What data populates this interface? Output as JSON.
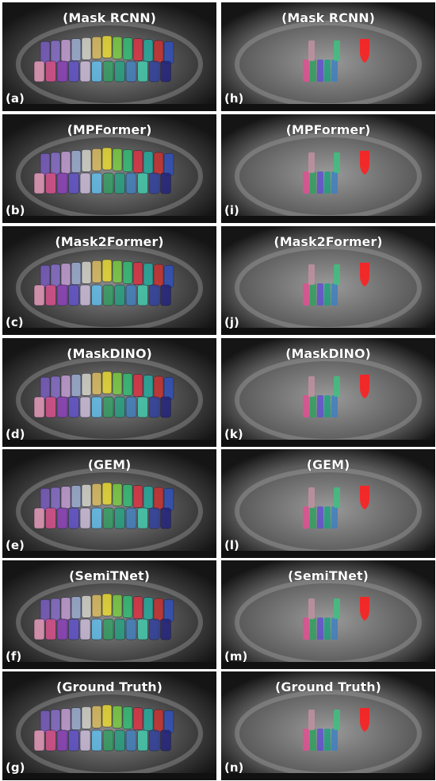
{
  "panels": {
    "left": [
      {
        "title": "(Mask RCNN)",
        "label": "(a)"
      },
      {
        "title": "(MPFormer)",
        "label": "(b)"
      },
      {
        "title": "(Mask2Former)",
        "label": "(c)"
      },
      {
        "title": "(MaskDINO)",
        "label": "(d)"
      },
      {
        "title": "(GEM)",
        "label": "(e)"
      },
      {
        "title": "(SemiTNet)",
        "label": "(f)"
      },
      {
        "title": "(Ground Truth)",
        "label": "(g)"
      }
    ],
    "right": [
      {
        "title": "(Mask RCNN)",
        "label": "(h)"
      },
      {
        "title": "(MPFormer)",
        "label": "(i)"
      },
      {
        "title": "(Mask2Former)",
        "label": "(j)"
      },
      {
        "title": "(MaskDINO)",
        "label": "(k)"
      },
      {
        "title": "(GEM)",
        "label": "(l)"
      },
      {
        "title": "(SemiTNet)",
        "label": "(m)"
      },
      {
        "title": "(Ground Truth)",
        "label": "(n)"
      }
    ]
  }
}
